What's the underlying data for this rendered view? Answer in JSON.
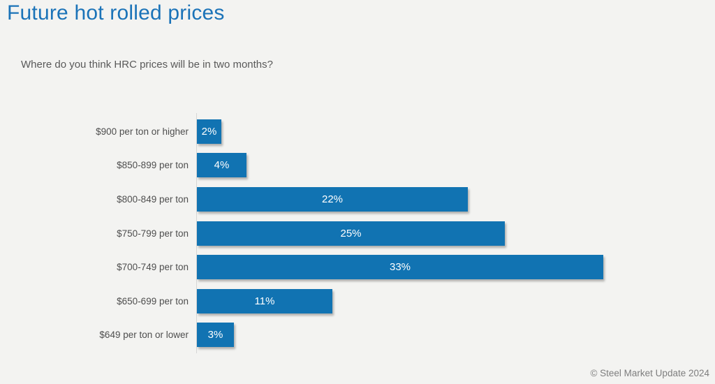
{
  "page": {
    "title": "Future hot rolled prices",
    "subtitle": "Where do you think HRC prices will be in two months?",
    "footer": "© Steel Market Update 2024"
  },
  "colors": {
    "background": "#f3f3f1",
    "title": "#1b73b8",
    "bar": "#1173b2",
    "bar_label_text": "#ffffff",
    "category_label_text": "#4e4e4e",
    "subtitle_text": "#595959",
    "footer_text": "#7e7e7e",
    "axis_line": "#d6d6d6"
  },
  "chart_data": {
    "type": "bar",
    "orientation": "horizontal",
    "title": "Future hot rolled prices",
    "subtitle": "Where do you think HRC prices will be in two months?",
    "categories": [
      "$900 per ton or higher",
      "$850-899 per ton",
      "$800-849 per ton",
      "$750-799 per ton",
      "$700-749 per ton",
      "$650-699 per ton",
      "$649 per ton or lower"
    ],
    "values": [
      2,
      4,
      22,
      25,
      33,
      11,
      3
    ],
    "value_labels": [
      "2%",
      "4%",
      "22%",
      "25%",
      "33%",
      "11%",
      "3%"
    ],
    "xlabel": "",
    "ylabel": "",
    "xlim": [
      0,
      35
    ],
    "grid": false,
    "legend": false,
    "value_label_position": "inside-center",
    "source_note": "© Steel Market Update 2024"
  }
}
